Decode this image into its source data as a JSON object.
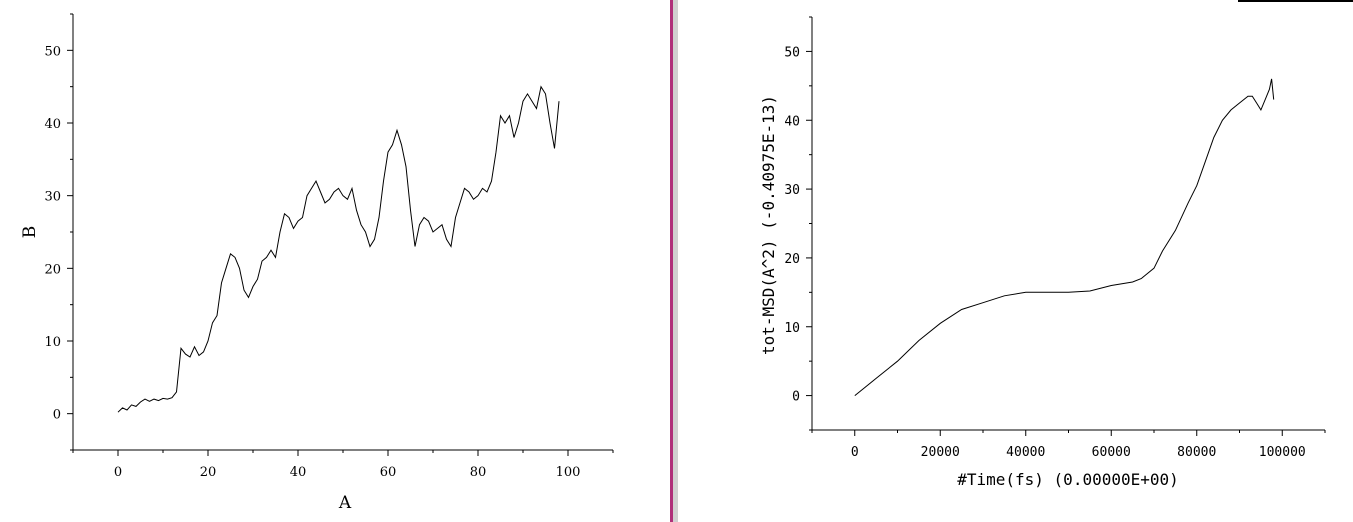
{
  "colors": {
    "background": "#ffffff",
    "line": "#000000",
    "divider": "#b0307a",
    "divider_shadow": "#d0d0d0"
  },
  "chart_data": [
    {
      "id": "left",
      "type": "line",
      "title": "",
      "xlabel": "A",
      "ylabel": "B",
      "xlim": [
        -10,
        110
      ],
      "ylim": [
        -5,
        55
      ],
      "xticks": [
        0,
        20,
        40,
        60,
        80,
        100
      ],
      "yticks": [
        0,
        10,
        20,
        30,
        40,
        50
      ],
      "xtick_labels": [
        "0",
        "20",
        "40",
        "60",
        "80",
        "100"
      ],
      "ytick_labels": [
        "0",
        "10",
        "20",
        "30",
        "40",
        "50"
      ],
      "grid": false,
      "series": [
        {
          "x": [
            0,
            1,
            2,
            3,
            4,
            5,
            6,
            7,
            8,
            9,
            10,
            11,
            12,
            13,
            14,
            15,
            16,
            17,
            18,
            19,
            20,
            21,
            22,
            23,
            24,
            25,
            26,
            27,
            28,
            29,
            30,
            31,
            32,
            33,
            34,
            35,
            36,
            37,
            38,
            39,
            40,
            41,
            42,
            43,
            44,
            45,
            46,
            47,
            48,
            49,
            50,
            51,
            52,
            53,
            54,
            55,
            56,
            57,
            58,
            59,
            60,
            61,
            62,
            63,
            64,
            65,
            66,
            67,
            68,
            69,
            70,
            71,
            72,
            73,
            74,
            75,
            76,
            77,
            78,
            79,
            80,
            81,
            82,
            83,
            84,
            85,
            86,
            87,
            88,
            89,
            90,
            91,
            92,
            93,
            94,
            95,
            96,
            97,
            98
          ],
          "values": [
            0.2,
            0.8,
            0.5,
            1.2,
            1.0,
            1.6,
            2.0,
            1.7,
            2.0,
            1.8,
            2.1,
            2.0,
            2.2,
            3.0,
            9.0,
            8.2,
            7.8,
            9.2,
            8.0,
            8.5,
            10.0,
            12.5,
            13.5,
            18.0,
            20.0,
            22.0,
            21.5,
            20.0,
            17.0,
            16.0,
            17.5,
            18.5,
            21.0,
            21.5,
            22.5,
            21.5,
            25.0,
            27.5,
            27.0,
            25.5,
            26.5,
            27.0,
            30.0,
            31.0,
            32.0,
            30.5,
            29.0,
            29.5,
            30.5,
            31.0,
            30.0,
            29.5,
            31.0,
            28.0,
            26.0,
            25.0,
            23.0,
            24.0,
            27.0,
            32.0,
            36.0,
            37.0,
            39.0,
            37.0,
            34.0,
            28.0,
            23.0,
            26.0,
            27.0,
            26.5,
            25.0,
            25.5,
            26.0,
            24.0,
            23.0,
            27.0,
            29.0,
            31.0,
            30.5,
            29.5,
            30.0,
            31.0,
            30.5,
            32.0,
            36.0,
            41.0,
            40.0,
            41.0,
            38.0,
            40.0,
            43.0,
            44.0,
            43.0,
            42.0,
            45.0,
            44.0,
            40.0,
            36.5,
            43.0
          ]
        }
      ]
    },
    {
      "id": "right",
      "type": "line",
      "title": "",
      "xlabel": "#Time(fs)  (0.00000E+00)",
      "ylabel": "tot-MSD(A^2)  (-0.40975E-13)",
      "xlim": [
        -10000,
        110000
      ],
      "ylim": [
        -5,
        55
      ],
      "xticks": [
        0,
        20000,
        40000,
        60000,
        80000,
        100000
      ],
      "yticks": [
        0,
        10,
        20,
        30,
        40,
        50
      ],
      "xtick_labels": [
        "0",
        "20000",
        "40000",
        "60000",
        "80000",
        "100000"
      ],
      "ytick_labels": [
        "0",
        "10",
        "20",
        "30",
        "40",
        "50"
      ],
      "grid": false,
      "series": [
        {
          "x": [
            0,
            5000,
            10000,
            15000,
            20000,
            25000,
            30000,
            35000,
            40000,
            45000,
            50000,
            55000,
            60000,
            65000,
            67000,
            70000,
            72000,
            75000,
            78000,
            80000,
            82000,
            84000,
            86000,
            88000,
            90000,
            92000,
            93000,
            94000,
            95000,
            96000,
            97000,
            97500,
            98000
          ],
          "values": [
            0.0,
            2.5,
            5.0,
            8.0,
            10.5,
            12.5,
            13.5,
            14.5,
            15.0,
            15.0,
            15.0,
            15.2,
            16.0,
            16.5,
            17.0,
            18.5,
            21.0,
            24.0,
            28.0,
            30.5,
            34.0,
            37.5,
            40.0,
            41.5,
            42.5,
            43.5,
            43.5,
            42.5,
            41.5,
            43.0,
            44.5,
            46.0,
            43.0
          ]
        }
      ]
    }
  ]
}
